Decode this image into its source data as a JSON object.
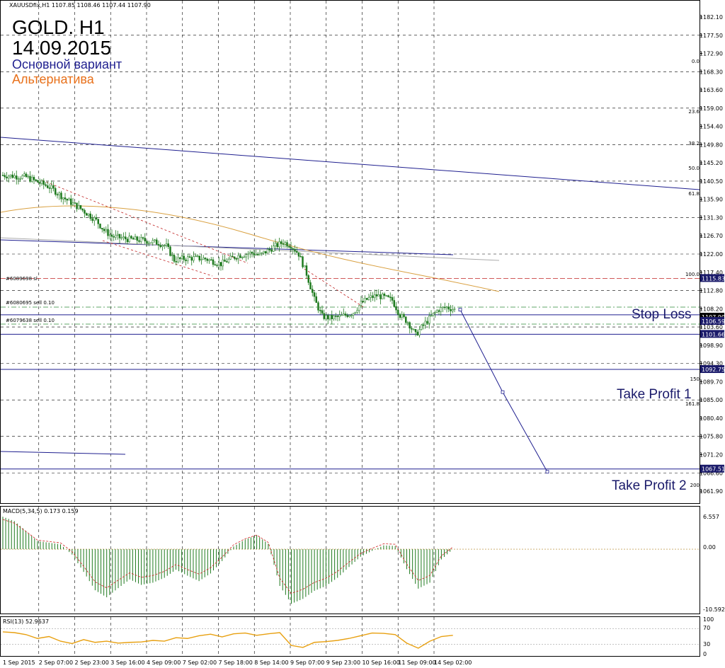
{
  "window": {
    "symbol_line": "XAUUSDfix,H1  1107.85 1108.46 1107.44 1107.90",
    "title_line1": "GOLD. H1",
    "title_line2": "14.09.2015",
    "legend_main": "Основной вариант",
    "legend_alt": "Альтернатива"
  },
  "labels": {
    "stop_loss": "Stop Loss",
    "take_profit_1": "Take Profit 1",
    "take_profit_2": "Take Profit 2"
  },
  "colors": {
    "main_line": "#1f1f8f",
    "alt_line": "#e8701a",
    "price_marker": "#1a1a6a",
    "order_line": "#2e8b3a",
    "resistance": "#c02020",
    "macd_bar": "#1e7a1e",
    "macd_signal": "#d02020",
    "rsi_line": "#e8a010"
  },
  "chart_data": [
    {
      "type": "candlestick",
      "x_labels": [
        "1 Sep 2015",
        "2 Sep 07:00",
        "2 Sep 23:00",
        "3 Sep 16:00",
        "4 Sep 09:00",
        "7 Sep 02:00",
        "7 Sep 18:00",
        "8 Sep 14:00",
        "9 Sep 07:00",
        "9 Sep 23:00",
        "10 Sep 16:00",
        "11 Sep 09:00",
        "14 Sep 02:00"
      ],
      "y_ticks": [
        "1182.10",
        "1177.50",
        "1172.90",
        "1168.30",
        "1163.60",
        "1159.00",
        "1154.40",
        "1149.80",
        "1145.20",
        "1140.50",
        "1135.90",
        "1131.30",
        "1126.70",
        "1122.00",
        "1117.40",
        "1112.80",
        "1108.20",
        "1103.60",
        "1098.90",
        "1094.30",
        "1089.70",
        "1085.00",
        "1080.40",
        "1075.80",
        "1071.20",
        "1066.60",
        "1061.90"
      ],
      "ylim": [
        1059.5,
        1184.0
      ],
      "price_path": [
        [
          0,
          1142.0
        ],
        [
          3,
          1141.5
        ],
        [
          6,
          1139.0
        ],
        [
          8,
          1136.0
        ],
        [
          10,
          1133.5
        ],
        [
          12,
          1130.5
        ],
        [
          13,
          1128.0
        ],
        [
          14,
          1126.5
        ],
        [
          16,
          1125.8
        ],
        [
          18,
          1125.5
        ],
        [
          20,
          1124.8
        ],
        [
          21,
          1124.0
        ],
        [
          22,
          1120.5
        ],
        [
          24,
          1121.0
        ],
        [
          26,
          1120.8
        ],
        [
          28,
          1119.5
        ],
        [
          30,
          1121.5
        ],
        [
          32,
          1122.3
        ],
        [
          33,
          1121.7
        ],
        [
          35,
          1124.0
        ],
        [
          36,
          1125.0
        ],
        [
          37,
          1124.2
        ],
        [
          38,
          1122.0
        ],
        [
          39,
          1117.0
        ],
        [
          40,
          1110.5
        ],
        [
          41,
          1106.2
        ],
        [
          42,
          1105.8
        ],
        [
          43,
          1106.0
        ],
        [
          44,
          1106.5
        ],
        [
          45,
          1107.2
        ],
        [
          46,
          1109.5
        ],
        [
          47,
          1110.8
        ],
        [
          48,
          1111.5
        ],
        [
          49,
          1111.0
        ],
        [
          50,
          1110.3
        ],
        [
          51,
          1106.5
        ],
        [
          52,
          1104.8
        ],
        [
          53,
          1101.5
        ],
        [
          54,
          1104.0
        ],
        [
          55,
          1106.2
        ],
        [
          56,
          1108.0
        ],
        [
          57,
          1108.5
        ],
        [
          58,
          1107.9
        ]
      ],
      "levels": {
        "price_current": "1107.90",
        "stop_loss": "1106.59",
        "resistance": "1115.83",
        "support": "1101.66",
        "take_profit_1": "1092.75",
        "take_profit_2": "1067.51"
      },
      "fibonacci": [
        "0.0",
        "23.6",
        "38.2",
        "50.0",
        "61.8",
        "100.0",
        "150",
        "161.8",
        "200"
      ],
      "orders": [
        "#6089698 sl",
        "#6080695 sell 0.10",
        "#6079638 sell 0.10"
      ],
      "forecast_path": [
        [
          1107.9
        ],
        [
          1087.0
        ],
        [
          1066.8
        ]
      ]
    },
    {
      "type": "bar",
      "name": "MACD(5,34,5) 0.173 0.159",
      "y_ticks": [
        "6.557",
        "0.00",
        "-10.592"
      ],
      "ylim": [
        -10.592,
        6.557
      ],
      "values": [
        6.0,
        5.2,
        3.4,
        1.5,
        1.2,
        0.9,
        -1.0,
        -4.2,
        -7.6,
        -8.9,
        -7.2,
        -5.6,
        -6.6,
        -6.2,
        -5.3,
        -3.8,
        -4.9,
        -5.9,
        -4.5,
        -2.2,
        0.5,
        1.8,
        2.6,
        1.0,
        -6.8,
        -10.1,
        -9.2,
        -7.7,
        -6.8,
        -5.3,
        -3.3,
        -1.4,
        -0.3,
        0.7,
        0.6,
        -3.7,
        -7.3,
        -6.2,
        -1.9,
        0.0
      ]
    },
    {
      "type": "line",
      "name": "RSI(13) 52.9637",
      "y_ticks": [
        "100",
        "70",
        "30",
        "0"
      ],
      "ylim": [
        0,
        100
      ],
      "values": [
        62,
        60,
        55,
        45,
        50,
        38,
        32,
        42,
        35,
        38,
        33,
        35,
        36,
        40,
        38,
        47,
        45,
        52,
        56,
        49,
        57,
        59,
        53,
        57,
        60,
        27,
        22,
        35,
        37,
        40,
        45,
        52,
        59,
        58,
        55,
        33,
        20,
        38,
        50,
        53
      ]
    }
  ]
}
